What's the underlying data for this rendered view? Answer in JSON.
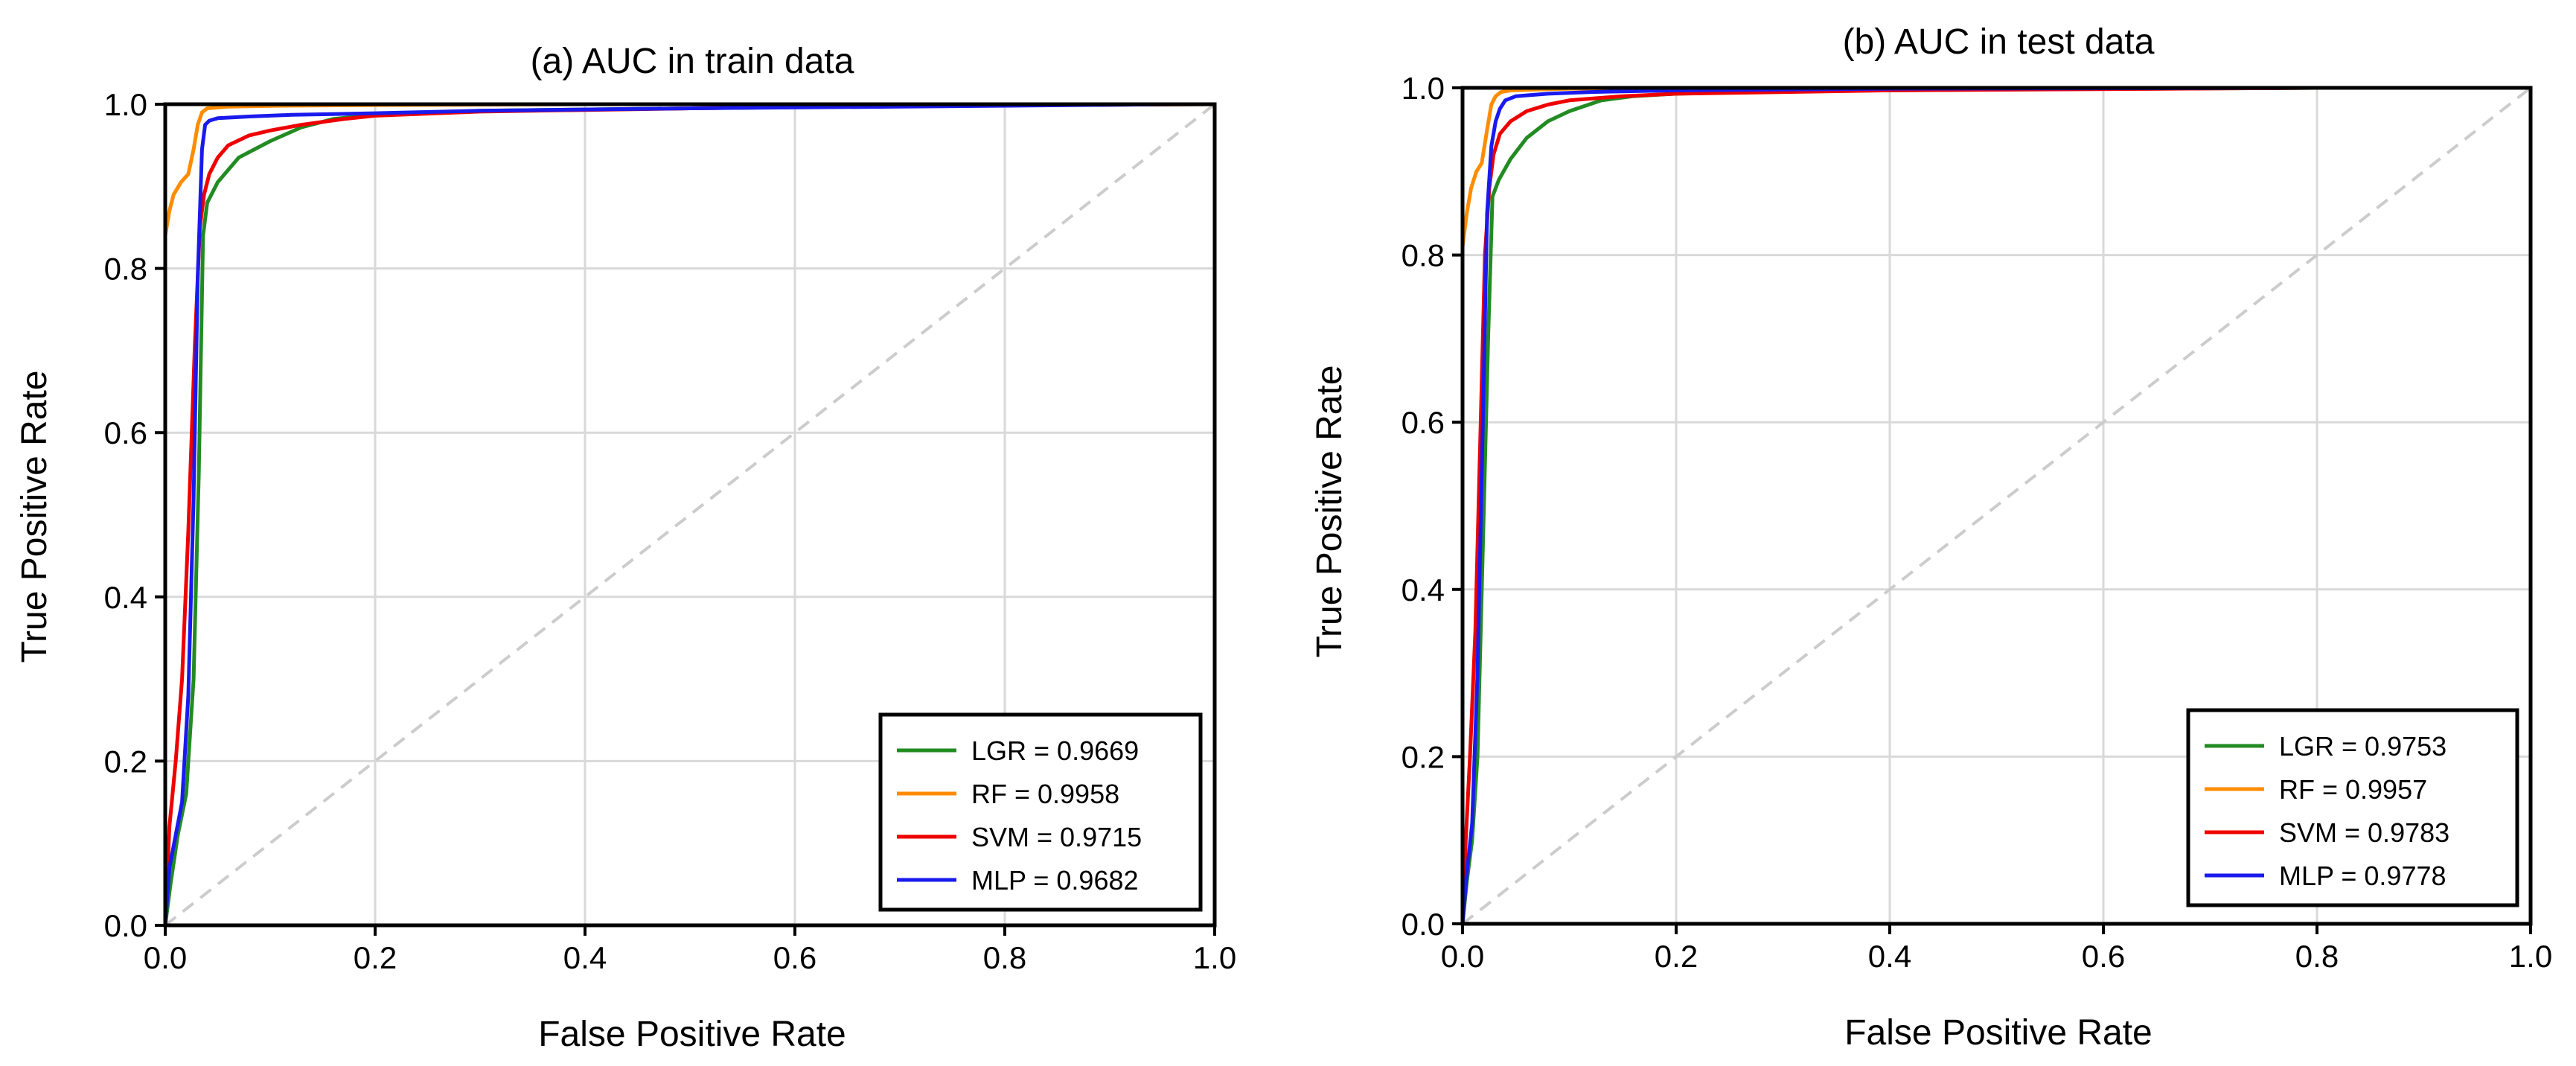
{
  "chart_data": [
    {
      "type": "line",
      "title": "(a) AUC in train data",
      "xlabel": "False Positive Rate",
      "ylabel": "True Positive Rate",
      "xlim": [
        0.0,
        1.0
      ],
      "ylim": [
        0.0,
        1.0
      ],
      "xticks": [
        "0.0",
        "0.2",
        "0.4",
        "0.6",
        "0.8",
        "1.0"
      ],
      "yticks": [
        "0.0",
        "0.2",
        "0.4",
        "0.6",
        "0.8",
        "1.0"
      ],
      "grid": true,
      "legend_position": "bottom-right",
      "diagonal_reference": {
        "x": [
          0,
          1
        ],
        "y": [
          0,
          1
        ],
        "color": "#cccccc",
        "style": "dashed"
      },
      "series": [
        {
          "name": "LGR = 0.9669",
          "color": "#228b22",
          "x": [
            0,
            0.005,
            0.012,
            0.02,
            0.027,
            0.032,
            0.036,
            0.04,
            0.05,
            0.07,
            0.1,
            0.13,
            0.16,
            0.2,
            0.3,
            0.5,
            0.7,
            1.0
          ],
          "y": [
            0,
            0.05,
            0.11,
            0.16,
            0.3,
            0.55,
            0.84,
            0.88,
            0.905,
            0.935,
            0.955,
            0.972,
            0.982,
            0.987,
            0.992,
            0.995,
            0.998,
            1.0
          ]
        },
        {
          "name": "RF = 0.9958",
          "color": "#ff8c00",
          "x": [
            0,
            0,
            0.004,
            0.008,
            0.015,
            0.022,
            0.027,
            0.031,
            0.035,
            0.04,
            0.06,
            0.1,
            0.2,
            0.4,
            0.6,
            1.0
          ],
          "y": [
            0,
            0.84,
            0.87,
            0.89,
            0.905,
            0.915,
            0.945,
            0.975,
            0.99,
            0.995,
            0.997,
            0.998,
            0.999,
            1.0,
            1.0,
            1.0
          ]
        },
        {
          "name": "SVM = 0.9715",
          "color": "#ee0000",
          "x": [
            0,
            0.004,
            0.01,
            0.016,
            0.022,
            0.028,
            0.033,
            0.037,
            0.042,
            0.05,
            0.06,
            0.08,
            0.1,
            0.13,
            0.17,
            0.2,
            0.3,
            0.5,
            0.7,
            1.0
          ],
          "y": [
            0,
            0.12,
            0.2,
            0.3,
            0.48,
            0.7,
            0.85,
            0.89,
            0.915,
            0.935,
            0.95,
            0.962,
            0.968,
            0.975,
            0.982,
            0.986,
            0.991,
            0.995,
            0.998,
            1.0
          ]
        },
        {
          "name": "MLP = 0.9682",
          "color": "#1a1aee",
          "x": [
            0,
            0.004,
            0.01,
            0.016,
            0.022,
            0.027,
            0.031,
            0.035,
            0.038,
            0.042,
            0.05,
            0.08,
            0.12,
            0.16,
            0.2,
            0.3,
            0.5,
            0.7,
            0.96
          ],
          "y": [
            0,
            0.07,
            0.11,
            0.15,
            0.28,
            0.52,
            0.79,
            0.945,
            0.975,
            0.98,
            0.983,
            0.985,
            0.987,
            0.988,
            0.989,
            0.992,
            0.995,
            0.997,
            1.0
          ]
        }
      ]
    },
    {
      "type": "line",
      "title": "(b) AUC in test data",
      "xlabel": "False Positive Rate",
      "ylabel": "True Positive Rate",
      "xlim": [
        0.0,
        1.0
      ],
      "ylim": [
        0.0,
        1.0
      ],
      "xticks": [
        "0.0",
        "0.2",
        "0.4",
        "0.6",
        "0.8",
        "1.0"
      ],
      "yticks": [
        "0.0",
        "0.2",
        "0.4",
        "0.6",
        "0.8",
        "1.0"
      ],
      "grid": true,
      "legend_position": "bottom-right",
      "diagonal_reference": {
        "x": [
          0,
          1
        ],
        "y": [
          0,
          1
        ],
        "color": "#cccccc",
        "style": "dashed"
      },
      "series": [
        {
          "name": "LGR = 0.9753",
          "color": "#228b22",
          "x": [
            0,
            0.004,
            0.009,
            0.014,
            0.019,
            0.024,
            0.028,
            0.034,
            0.045,
            0.06,
            0.08,
            0.1,
            0.13,
            0.16,
            0.2,
            0.3,
            0.5,
            0.8
          ],
          "y": [
            0,
            0.05,
            0.1,
            0.2,
            0.45,
            0.7,
            0.87,
            0.89,
            0.915,
            0.94,
            0.96,
            0.972,
            0.985,
            0.99,
            0.993,
            0.996,
            0.998,
            1.0
          ]
        },
        {
          "name": "RF = 0.9957",
          "color": "#ff8c00",
          "x": [
            0,
            0,
            0.004,
            0.008,
            0.013,
            0.018,
            0.023,
            0.027,
            0.031,
            0.036,
            0.045,
            0.07,
            0.1,
            0.2,
            1.0
          ],
          "y": [
            0,
            0.81,
            0.85,
            0.88,
            0.9,
            0.91,
            0.95,
            0.98,
            0.99,
            0.995,
            0.997,
            0.998,
            0.999,
            1.0,
            1.0
          ]
        },
        {
          "name": "SVM = 0.9783",
          "color": "#ee0000",
          "x": [
            0,
            0.003,
            0.007,
            0.012,
            0.017,
            0.021,
            0.025,
            0.029,
            0.035,
            0.045,
            0.06,
            0.08,
            0.1,
            0.15,
            0.2,
            0.4,
            0.8
          ],
          "y": [
            0,
            0.1,
            0.2,
            0.35,
            0.6,
            0.8,
            0.88,
            0.92,
            0.945,
            0.96,
            0.972,
            0.98,
            0.985,
            0.99,
            0.993,
            0.997,
            1.0
          ]
        },
        {
          "name": "MLP = 0.9778",
          "color": "#1a1aee",
          "x": [
            0,
            0.004,
            0.009,
            0.014,
            0.019,
            0.023,
            0.027,
            0.031,
            0.035,
            0.04,
            0.05,
            0.08,
            0.12,
            0.2,
            0.4,
            0.79
          ],
          "y": [
            0,
            0.06,
            0.12,
            0.3,
            0.6,
            0.85,
            0.93,
            0.96,
            0.975,
            0.985,
            0.99,
            0.993,
            0.995,
            0.997,
            0.999,
            1.0
          ]
        }
      ]
    }
  ]
}
